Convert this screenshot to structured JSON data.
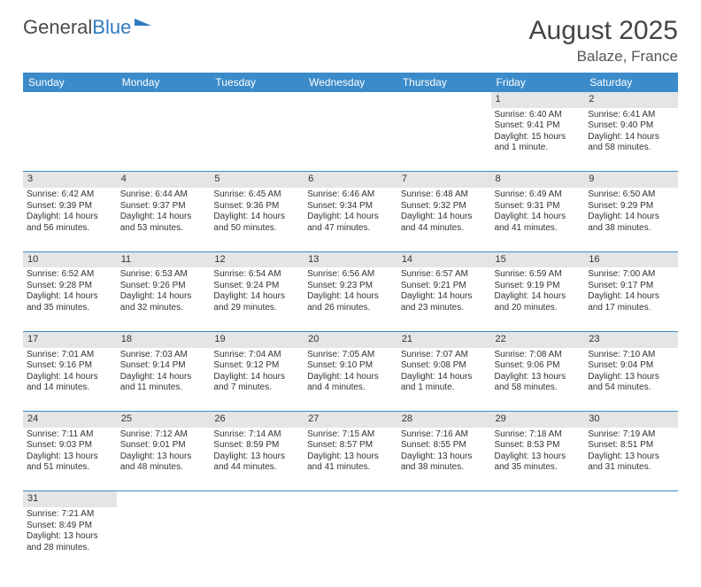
{
  "logo": {
    "text1": "General",
    "text2": "Blue"
  },
  "title": {
    "month": "August 2025",
    "location": "Balaze, France"
  },
  "day_headers": [
    "Sunday",
    "Monday",
    "Tuesday",
    "Wednesday",
    "Thursday",
    "Friday",
    "Saturday"
  ],
  "colors": {
    "header_bg": "#3b8bca",
    "header_text": "#ffffff",
    "daynum_bg": "#e5e5e5",
    "border": "#3b8bca",
    "logo_blue": "#2f7bbf"
  },
  "weeks": [
    [
      null,
      null,
      null,
      null,
      null,
      {
        "n": "1",
        "sr": "Sunrise: 6:40 AM",
        "ss": "Sunset: 9:41 PM",
        "dl": "Daylight: 15 hours and 1 minute."
      },
      {
        "n": "2",
        "sr": "Sunrise: 6:41 AM",
        "ss": "Sunset: 9:40 PM",
        "dl": "Daylight: 14 hours and 58 minutes."
      }
    ],
    [
      {
        "n": "3",
        "sr": "Sunrise: 6:42 AM",
        "ss": "Sunset: 9:39 PM",
        "dl": "Daylight: 14 hours and 56 minutes."
      },
      {
        "n": "4",
        "sr": "Sunrise: 6:44 AM",
        "ss": "Sunset: 9:37 PM",
        "dl": "Daylight: 14 hours and 53 minutes."
      },
      {
        "n": "5",
        "sr": "Sunrise: 6:45 AM",
        "ss": "Sunset: 9:36 PM",
        "dl": "Daylight: 14 hours and 50 minutes."
      },
      {
        "n": "6",
        "sr": "Sunrise: 6:46 AM",
        "ss": "Sunset: 9:34 PM",
        "dl": "Daylight: 14 hours and 47 minutes."
      },
      {
        "n": "7",
        "sr": "Sunrise: 6:48 AM",
        "ss": "Sunset: 9:32 PM",
        "dl": "Daylight: 14 hours and 44 minutes."
      },
      {
        "n": "8",
        "sr": "Sunrise: 6:49 AM",
        "ss": "Sunset: 9:31 PM",
        "dl": "Daylight: 14 hours and 41 minutes."
      },
      {
        "n": "9",
        "sr": "Sunrise: 6:50 AM",
        "ss": "Sunset: 9:29 PM",
        "dl": "Daylight: 14 hours and 38 minutes."
      }
    ],
    [
      {
        "n": "10",
        "sr": "Sunrise: 6:52 AM",
        "ss": "Sunset: 9:28 PM",
        "dl": "Daylight: 14 hours and 35 minutes."
      },
      {
        "n": "11",
        "sr": "Sunrise: 6:53 AM",
        "ss": "Sunset: 9:26 PM",
        "dl": "Daylight: 14 hours and 32 minutes."
      },
      {
        "n": "12",
        "sr": "Sunrise: 6:54 AM",
        "ss": "Sunset: 9:24 PM",
        "dl": "Daylight: 14 hours and 29 minutes."
      },
      {
        "n": "13",
        "sr": "Sunrise: 6:56 AM",
        "ss": "Sunset: 9:23 PM",
        "dl": "Daylight: 14 hours and 26 minutes."
      },
      {
        "n": "14",
        "sr": "Sunrise: 6:57 AM",
        "ss": "Sunset: 9:21 PM",
        "dl": "Daylight: 14 hours and 23 minutes."
      },
      {
        "n": "15",
        "sr": "Sunrise: 6:59 AM",
        "ss": "Sunset: 9:19 PM",
        "dl": "Daylight: 14 hours and 20 minutes."
      },
      {
        "n": "16",
        "sr": "Sunrise: 7:00 AM",
        "ss": "Sunset: 9:17 PM",
        "dl": "Daylight: 14 hours and 17 minutes."
      }
    ],
    [
      {
        "n": "17",
        "sr": "Sunrise: 7:01 AM",
        "ss": "Sunset: 9:16 PM",
        "dl": "Daylight: 14 hours and 14 minutes."
      },
      {
        "n": "18",
        "sr": "Sunrise: 7:03 AM",
        "ss": "Sunset: 9:14 PM",
        "dl": "Daylight: 14 hours and 11 minutes."
      },
      {
        "n": "19",
        "sr": "Sunrise: 7:04 AM",
        "ss": "Sunset: 9:12 PM",
        "dl": "Daylight: 14 hours and 7 minutes."
      },
      {
        "n": "20",
        "sr": "Sunrise: 7:05 AM",
        "ss": "Sunset: 9:10 PM",
        "dl": "Daylight: 14 hours and 4 minutes."
      },
      {
        "n": "21",
        "sr": "Sunrise: 7:07 AM",
        "ss": "Sunset: 9:08 PM",
        "dl": "Daylight: 14 hours and 1 minute."
      },
      {
        "n": "22",
        "sr": "Sunrise: 7:08 AM",
        "ss": "Sunset: 9:06 PM",
        "dl": "Daylight: 13 hours and 58 minutes."
      },
      {
        "n": "23",
        "sr": "Sunrise: 7:10 AM",
        "ss": "Sunset: 9:04 PM",
        "dl": "Daylight: 13 hours and 54 minutes."
      }
    ],
    [
      {
        "n": "24",
        "sr": "Sunrise: 7:11 AM",
        "ss": "Sunset: 9:03 PM",
        "dl": "Daylight: 13 hours and 51 minutes."
      },
      {
        "n": "25",
        "sr": "Sunrise: 7:12 AM",
        "ss": "Sunset: 9:01 PM",
        "dl": "Daylight: 13 hours and 48 minutes."
      },
      {
        "n": "26",
        "sr": "Sunrise: 7:14 AM",
        "ss": "Sunset: 8:59 PM",
        "dl": "Daylight: 13 hours and 44 minutes."
      },
      {
        "n": "27",
        "sr": "Sunrise: 7:15 AM",
        "ss": "Sunset: 8:57 PM",
        "dl": "Daylight: 13 hours and 41 minutes."
      },
      {
        "n": "28",
        "sr": "Sunrise: 7:16 AM",
        "ss": "Sunset: 8:55 PM",
        "dl": "Daylight: 13 hours and 38 minutes."
      },
      {
        "n": "29",
        "sr": "Sunrise: 7:18 AM",
        "ss": "Sunset: 8:53 PM",
        "dl": "Daylight: 13 hours and 35 minutes."
      },
      {
        "n": "30",
        "sr": "Sunrise: 7:19 AM",
        "ss": "Sunset: 8:51 PM",
        "dl": "Daylight: 13 hours and 31 minutes."
      }
    ],
    [
      {
        "n": "31",
        "sr": "Sunrise: 7:21 AM",
        "ss": "Sunset: 8:49 PM",
        "dl": "Daylight: 13 hours and 28 minutes."
      },
      null,
      null,
      null,
      null,
      null,
      null
    ]
  ]
}
